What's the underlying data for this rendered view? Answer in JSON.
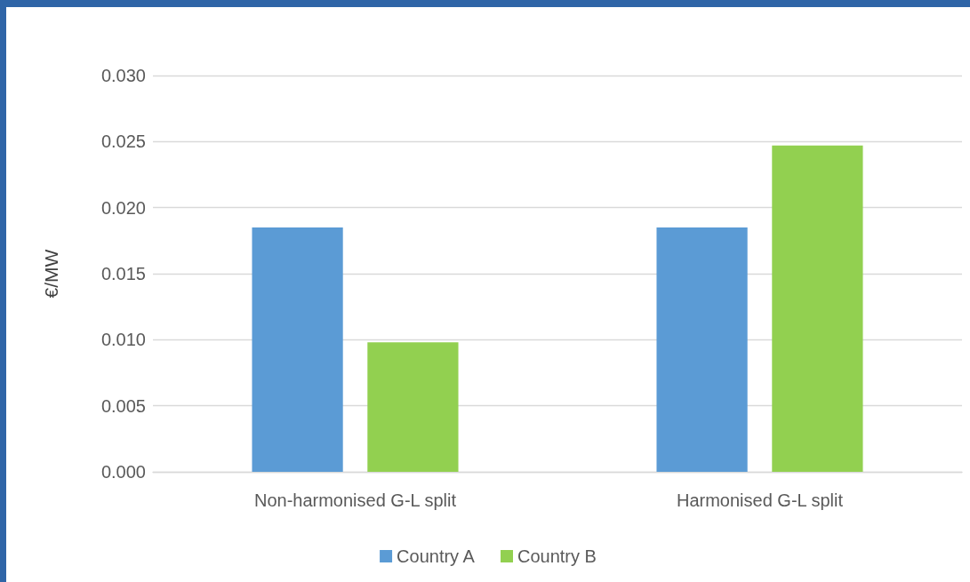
{
  "chart_data": {
    "type": "bar",
    "ylabel": "€/MW",
    "categories": [
      "Non-harmonised G-L split",
      "Harmonised G-L split"
    ],
    "series": [
      {
        "name": "Country A",
        "color": "#5b9bd5",
        "values": [
          0.0185,
          0.0185
        ]
      },
      {
        "name": "Country B",
        "color": "#92d050",
        "values": [
          0.0098,
          0.0247
        ]
      }
    ],
    "ylim": [
      0,
      0.03
    ],
    "yticks": [
      {
        "value": 0,
        "label": "0.000"
      },
      {
        "value": 0.005,
        "label": "0.005"
      },
      {
        "value": 0.01,
        "label": "0.010"
      },
      {
        "value": 0.015,
        "label": "0.015"
      },
      {
        "value": 0.02,
        "label": "0.020"
      },
      {
        "value": 0.025,
        "label": "0.025"
      },
      {
        "value": 0.03,
        "label": "0.030"
      }
    ],
    "grid": "y",
    "legend": "bottom"
  }
}
